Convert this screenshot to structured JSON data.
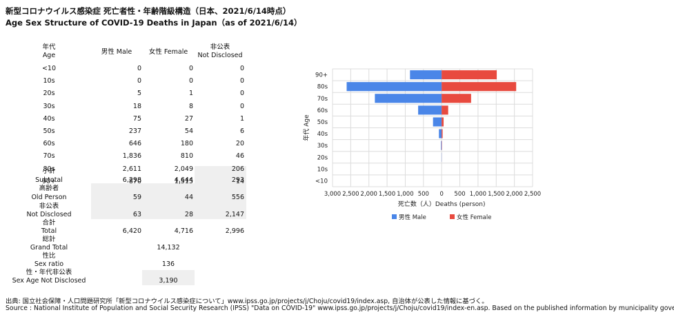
{
  "title_ja": "新型コロナウイルス感染症 死亡者性・年齢階級構造（日本、2021/6/14時点）",
  "title_en": "Age Sex Structure of COVID-19 Deaths in Japan（as of 2021/6/14）",
  "table": {
    "col_age_ja": "年代",
    "col_age_en": "Age",
    "col_male": "男性 Male",
    "col_female": "女性 Female",
    "col_nd_ja": "非公表",
    "col_nd_en": "Not Disclosed",
    "rows": [
      {
        "age": "<10",
        "male": "0",
        "female": "0",
        "nd": "0"
      },
      {
        "age": "10s",
        "male": "0",
        "female": "0",
        "nd": "0"
      },
      {
        "age": "20s",
        "male": "5",
        "female": "1",
        "nd": "0"
      },
      {
        "age": "30s",
        "male": "18",
        "female": "8",
        "nd": "0"
      },
      {
        "age": "40s",
        "male": "75",
        "female": "27",
        "nd": "1"
      },
      {
        "age": "50s",
        "male": "237",
        "female": "54",
        "nd": "6"
      },
      {
        "age": "60s",
        "male": "646",
        "female": "180",
        "nd": "20"
      },
      {
        "age": "70s",
        "male": "1,836",
        "female": "810",
        "nd": "46"
      },
      {
        "age": "80s",
        "male": "2,611",
        "female": "2,049",
        "nd": "206"
      },
      {
        "age": "90+",
        "male": "870",
        "female": "1,515",
        "nd": "14"
      }
    ],
    "subtotal": {
      "ja": "小計",
      "en": "Subtotal",
      "male": "6,298",
      "female": "4,644",
      "nd": "293"
    },
    "old_person": {
      "ja": "高齢者",
      "en": "Old Person",
      "male": "59",
      "female": "44",
      "nd": "556"
    },
    "not_disclosed": {
      "ja": "非公表",
      "en": "Not Disclosed",
      "male": "63",
      "female": "28",
      "nd": "2,147"
    },
    "total": {
      "ja": "合計",
      "en": "Total",
      "male": "6,420",
      "female": "4,716",
      "nd": "2,996"
    },
    "grand_total": {
      "ja": "総計",
      "en": "Grand Total",
      "value": "14,132"
    },
    "sex_ratio": {
      "ja": "性比",
      "en": "Sex ratio",
      "value": "136"
    },
    "sex_age_nd": {
      "ja": "性・年代非公表",
      "en": "Sex Age Not Disclosed",
      "value": "3,190"
    }
  },
  "source_ja": "出典: 国立社会保障・人口問題研究所「新型コロナウイルス感染症について」www.ipss.go.jp/projects/j/Choju/covid19/index.asp, 自治体が公表した情報に基づく。",
  "source_en": "Source : National Institute of Population and Social Security Research (IPSS) \"Data on COVID-19\" www.ipss.go.jp/projects/j/Choju/covid19/index-en.asp. Based on the published information by municipality governments.",
  "chart_data": {
    "type": "bar",
    "orientation": "horizontal-population-pyramid",
    "categories": [
      "<10",
      "10s",
      "20s",
      "30s",
      "40s",
      "50s",
      "60s",
      "70s",
      "80s",
      "90+"
    ],
    "series": [
      {
        "name": "男性 Male",
        "color": "#4a86e8",
        "values": [
          0,
          0,
          5,
          18,
          75,
          237,
          646,
          1836,
          2611,
          870
        ]
      },
      {
        "name": "女性 Female",
        "color": "#e84a3f",
        "values": [
          0,
          0,
          1,
          8,
          27,
          54,
          180,
          810,
          2049,
          1515
        ]
      }
    ],
    "xlabel": "死亡数（人）Deaths (person)",
    "ylabel": "年代 Age",
    "xlim": [
      -3000,
      2500
    ],
    "xticks": [
      "3,000",
      "2,500",
      "2,000",
      "1,500",
      "1,000",
      "500",
      "0",
      "500",
      "1,000",
      "1,500",
      "2,000",
      "2,500"
    ],
    "grid": true,
    "legend": "bottom"
  }
}
